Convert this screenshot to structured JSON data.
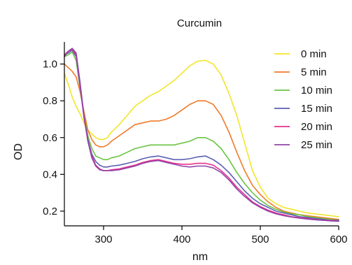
{
  "chart_data": {
    "type": "line",
    "title": "Curcumin",
    "xlabel": "nm",
    "ylabel": "OD",
    "xlim": [
      250,
      600
    ],
    "ylim": [
      0.12,
      1.12
    ],
    "xticks": [
      300,
      400,
      500,
      600
    ],
    "yticks": [
      0.2,
      0.4,
      0.6,
      0.8,
      1.0
    ],
    "xtick_labels": [
      "300",
      "400",
      "500",
      "600"
    ],
    "ytick_labels": [
      "0.2",
      "0.4",
      "0.6",
      "0.8",
      "1.0"
    ],
    "grid": false,
    "legend_position": "top-right",
    "series": [
      {
        "name": "0 min",
        "color": "#f2e52a",
        "points": [
          [
            250,
            0.95
          ],
          [
            255,
            0.89
          ],
          [
            260,
            0.82
          ],
          [
            265,
            0.77
          ],
          [
            270,
            0.73
          ],
          [
            275,
            0.68
          ],
          [
            280,
            0.64
          ],
          [
            285,
            0.62
          ],
          [
            290,
            0.6
          ],
          [
            295,
            0.59
          ],
          [
            300,
            0.59
          ],
          [
            305,
            0.6
          ],
          [
            310,
            0.63
          ],
          [
            320,
            0.67
          ],
          [
            330,
            0.72
          ],
          [
            340,
            0.77
          ],
          [
            350,
            0.8
          ],
          [
            360,
            0.83
          ],
          [
            370,
            0.85
          ],
          [
            380,
            0.88
          ],
          [
            390,
            0.91
          ],
          [
            400,
            0.95
          ],
          [
            410,
            0.99
          ],
          [
            420,
            1.015
          ],
          [
            430,
            1.02
          ],
          [
            440,
            1.0
          ],
          [
            450,
            0.94
          ],
          [
            460,
            0.84
          ],
          [
            470,
            0.72
          ],
          [
            480,
            0.57
          ],
          [
            490,
            0.42
          ],
          [
            500,
            0.33
          ],
          [
            510,
            0.27
          ],
          [
            520,
            0.24
          ],
          [
            530,
            0.22
          ],
          [
            540,
            0.21
          ],
          [
            550,
            0.2
          ],
          [
            560,
            0.19
          ],
          [
            570,
            0.185
          ],
          [
            580,
            0.18
          ],
          [
            590,
            0.175
          ],
          [
            600,
            0.17
          ]
        ]
      },
      {
        "name": "5 min",
        "color": "#f07a2a",
        "points": [
          [
            250,
            1.0
          ],
          [
            255,
            0.98
          ],
          [
            260,
            0.96
          ],
          [
            265,
            0.93
          ],
          [
            270,
            0.85
          ],
          [
            275,
            0.74
          ],
          [
            280,
            0.64
          ],
          [
            285,
            0.59
          ],
          [
            290,
            0.56
          ],
          [
            295,
            0.55
          ],
          [
            300,
            0.55
          ],
          [
            305,
            0.56
          ],
          [
            310,
            0.58
          ],
          [
            320,
            0.61
          ],
          [
            330,
            0.64
          ],
          [
            340,
            0.67
          ],
          [
            350,
            0.68
          ],
          [
            360,
            0.69
          ],
          [
            370,
            0.69
          ],
          [
            380,
            0.7
          ],
          [
            390,
            0.72
          ],
          [
            400,
            0.75
          ],
          [
            410,
            0.78
          ],
          [
            420,
            0.8
          ],
          [
            430,
            0.8
          ],
          [
            440,
            0.78
          ],
          [
            450,
            0.72
          ],
          [
            460,
            0.63
          ],
          [
            470,
            0.52
          ],
          [
            480,
            0.42
          ],
          [
            490,
            0.34
          ],
          [
            500,
            0.29
          ],
          [
            510,
            0.25
          ],
          [
            520,
            0.22
          ],
          [
            530,
            0.2
          ],
          [
            540,
            0.19
          ],
          [
            550,
            0.18
          ],
          [
            560,
            0.175
          ],
          [
            570,
            0.17
          ],
          [
            580,
            0.165
          ],
          [
            590,
            0.16
          ],
          [
            600,
            0.155
          ]
        ]
      },
      {
        "name": "10 min",
        "color": "#6ac443",
        "points": [
          [
            250,
            1.04
          ],
          [
            255,
            1.05
          ],
          [
            260,
            1.065
          ],
          [
            265,
            1.02
          ],
          [
            270,
            0.87
          ],
          [
            275,
            0.72
          ],
          [
            280,
            0.61
          ],
          [
            285,
            0.54
          ],
          [
            290,
            0.5
          ],
          [
            295,
            0.49
          ],
          [
            300,
            0.48
          ],
          [
            305,
            0.48
          ],
          [
            310,
            0.49
          ],
          [
            320,
            0.5
          ],
          [
            330,
            0.52
          ],
          [
            340,
            0.54
          ],
          [
            350,
            0.55
          ],
          [
            360,
            0.56
          ],
          [
            370,
            0.56
          ],
          [
            380,
            0.56
          ],
          [
            390,
            0.56
          ],
          [
            400,
            0.57
          ],
          [
            410,
            0.58
          ],
          [
            420,
            0.6
          ],
          [
            430,
            0.6
          ],
          [
            440,
            0.58
          ],
          [
            450,
            0.54
          ],
          [
            460,
            0.48
          ],
          [
            470,
            0.41
          ],
          [
            480,
            0.35
          ],
          [
            490,
            0.3
          ],
          [
            500,
            0.26
          ],
          [
            510,
            0.23
          ],
          [
            520,
            0.21
          ],
          [
            530,
            0.195
          ],
          [
            540,
            0.185
          ],
          [
            550,
            0.18
          ],
          [
            560,
            0.17
          ],
          [
            570,
            0.165
          ],
          [
            580,
            0.16
          ],
          [
            590,
            0.155
          ],
          [
            600,
            0.15
          ]
        ]
      },
      {
        "name": "15 min",
        "color": "#5a5fb3",
        "points": [
          [
            250,
            1.05
          ],
          [
            255,
            1.06
          ],
          [
            260,
            1.075
          ],
          [
            265,
            1.04
          ],
          [
            270,
            0.88
          ],
          [
            275,
            0.71
          ],
          [
            280,
            0.59
          ],
          [
            285,
            0.51
          ],
          [
            290,
            0.47
          ],
          [
            295,
            0.45
          ],
          [
            300,
            0.44
          ],
          [
            305,
            0.44
          ],
          [
            310,
            0.445
          ],
          [
            320,
            0.45
          ],
          [
            330,
            0.46
          ],
          [
            340,
            0.47
          ],
          [
            350,
            0.485
          ],
          [
            360,
            0.495
          ],
          [
            370,
            0.5
          ],
          [
            380,
            0.49
          ],
          [
            390,
            0.48
          ],
          [
            400,
            0.48
          ],
          [
            410,
            0.485
          ],
          [
            420,
            0.495
          ],
          [
            430,
            0.5
          ],
          [
            440,
            0.48
          ],
          [
            450,
            0.45
          ],
          [
            460,
            0.41
          ],
          [
            470,
            0.36
          ],
          [
            480,
            0.31
          ],
          [
            490,
            0.27
          ],
          [
            500,
            0.24
          ],
          [
            510,
            0.22
          ],
          [
            520,
            0.2
          ],
          [
            530,
            0.19
          ],
          [
            540,
            0.18
          ],
          [
            550,
            0.17
          ],
          [
            560,
            0.165
          ],
          [
            570,
            0.16
          ],
          [
            580,
            0.155
          ],
          [
            590,
            0.15
          ],
          [
            600,
            0.15
          ]
        ]
      },
      {
        "name": "20 min",
        "color": "#e8318f",
        "points": [
          [
            250,
            1.05
          ],
          [
            255,
            1.07
          ],
          [
            260,
            1.08
          ],
          [
            265,
            1.05
          ],
          [
            270,
            0.89
          ],
          [
            275,
            0.71
          ],
          [
            280,
            0.58
          ],
          [
            285,
            0.5
          ],
          [
            290,
            0.45
          ],
          [
            295,
            0.43
          ],
          [
            300,
            0.42
          ],
          [
            305,
            0.42
          ],
          [
            310,
            0.425
          ],
          [
            320,
            0.43
          ],
          [
            330,
            0.44
          ],
          [
            340,
            0.45
          ],
          [
            350,
            0.465
          ],
          [
            360,
            0.475
          ],
          [
            370,
            0.48
          ],
          [
            380,
            0.47
          ],
          [
            390,
            0.46
          ],
          [
            400,
            0.455
          ],
          [
            410,
            0.455
          ],
          [
            420,
            0.46
          ],
          [
            430,
            0.46
          ],
          [
            440,
            0.45
          ],
          [
            450,
            0.42
          ],
          [
            460,
            0.38
          ],
          [
            470,
            0.33
          ],
          [
            480,
            0.29
          ],
          [
            490,
            0.25
          ],
          [
            500,
            0.225
          ],
          [
            510,
            0.205
          ],
          [
            520,
            0.19
          ],
          [
            530,
            0.18
          ],
          [
            540,
            0.17
          ],
          [
            550,
            0.165
          ],
          [
            560,
            0.16
          ],
          [
            570,
            0.155
          ],
          [
            580,
            0.15
          ],
          [
            590,
            0.15
          ],
          [
            600,
            0.145
          ]
        ]
      },
      {
        "name": "25 min",
        "color": "#8e44a8",
        "points": [
          [
            250,
            1.04
          ],
          [
            255,
            1.07
          ],
          [
            260,
            1.085
          ],
          [
            265,
            1.06
          ],
          [
            270,
            0.9
          ],
          [
            275,
            0.72
          ],
          [
            280,
            0.58
          ],
          [
            285,
            0.49
          ],
          [
            290,
            0.445
          ],
          [
            295,
            0.425
          ],
          [
            300,
            0.42
          ],
          [
            305,
            0.42
          ],
          [
            310,
            0.42
          ],
          [
            320,
            0.425
          ],
          [
            330,
            0.435
          ],
          [
            340,
            0.445
          ],
          [
            350,
            0.46
          ],
          [
            360,
            0.47
          ],
          [
            370,
            0.475
          ],
          [
            380,
            0.465
          ],
          [
            390,
            0.455
          ],
          [
            400,
            0.445
          ],
          [
            410,
            0.44
          ],
          [
            420,
            0.445
          ],
          [
            430,
            0.445
          ],
          [
            440,
            0.435
          ],
          [
            450,
            0.41
          ],
          [
            460,
            0.37
          ],
          [
            470,
            0.32
          ],
          [
            480,
            0.28
          ],
          [
            490,
            0.245
          ],
          [
            500,
            0.22
          ],
          [
            510,
            0.2
          ],
          [
            520,
            0.185
          ],
          [
            530,
            0.175
          ],
          [
            540,
            0.168
          ],
          [
            550,
            0.162
          ],
          [
            560,
            0.157
          ],
          [
            570,
            0.153
          ],
          [
            580,
            0.15
          ],
          [
            590,
            0.147
          ],
          [
            600,
            0.145
          ]
        ]
      }
    ]
  }
}
